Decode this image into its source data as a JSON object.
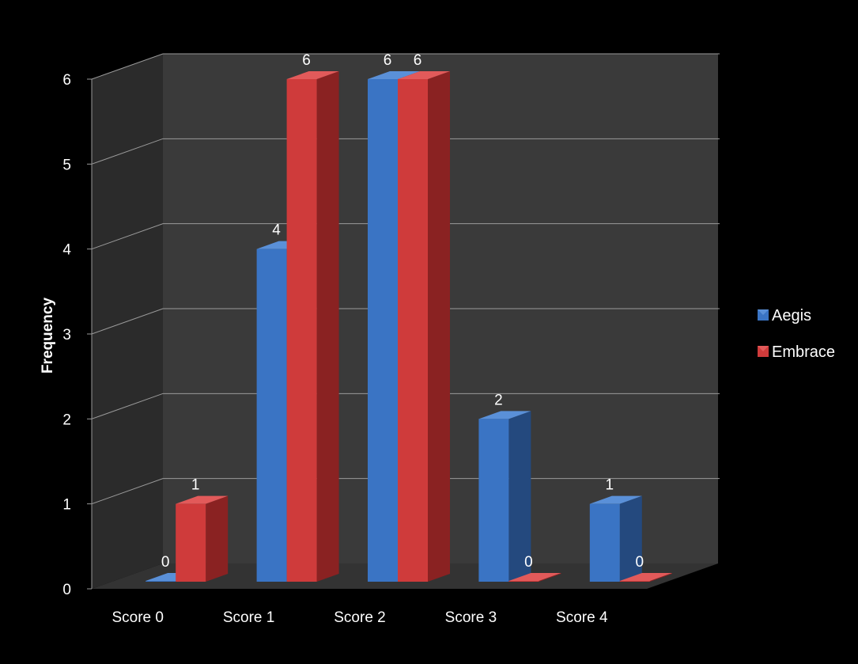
{
  "chart_data": {
    "type": "bar",
    "title": "",
    "xlabel": "",
    "ylabel": "Frequency",
    "categories": [
      "Score 0",
      "Score 1",
      "Score 2",
      "Score 3",
      "Score 4"
    ],
    "series": [
      {
        "name": "Aegis",
        "values": [
          0,
          4,
          6,
          2,
          1
        ]
      },
      {
        "name": "Embrace",
        "values": [
          1,
          6,
          6,
          0,
          0
        ]
      }
    ],
    "ylim": [
      0,
      6
    ],
    "yticks": [
      "0",
      "1",
      "2",
      "3",
      "4",
      "5",
      "6"
    ],
    "grid": true,
    "legend": "right",
    "style": "3d-clustered-column"
  },
  "colors": {
    "background": "#000000",
    "back_wall": "#3a3a3a",
    "side_wall": "#2b2b2b",
    "floor": "#333333",
    "gridline": "#9a9a9a",
    "aegis_front": "#3a74c4",
    "aegis_top": "#5a90d8",
    "aegis_side": "#24497e",
    "embrace_front": "#cf3b3b",
    "embrace_top": "#e25a5a",
    "embrace_side": "#8a2222"
  }
}
